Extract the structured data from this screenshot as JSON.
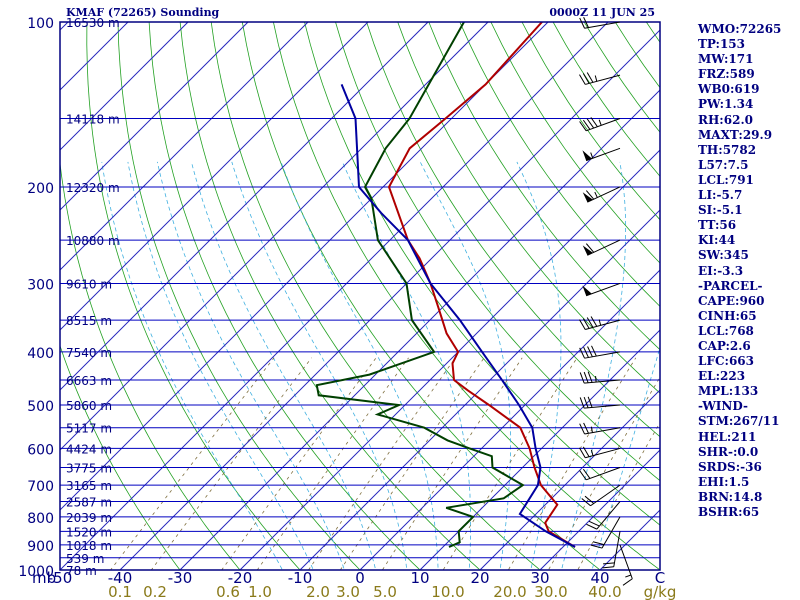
{
  "header": {
    "station": "KMAF (72265) Sounding",
    "time": "0000Z 11 JUN 25"
  },
  "indices": [
    "WMO:72265",
    "TP:153",
    "MW:171",
    "FRZ:589",
    "WB0:619",
    "PW:1.34",
    "RH:62.0",
    "MAXT:29.9",
    "TH:5782",
    "L57:7.5",
    "LCL:791",
    "LI:-5.7",
    "SI:-5.1",
    "TT:56",
    "KI:44",
    "SW:345",
    "EI:-3.3",
    "-PARCEL-",
    "CAPE:960",
    "CINH:65",
    "LCL:768",
    "CAP:2.6",
    "LFC:663",
    "EL:223",
    "MPL:133",
    "-WIND-",
    "STM:267/11",
    "HEL:211",
    "SHR-:0.0",
    "SRDS:-36",
    "EHI:1.5",
    "BRN:14.8",
    "BSHR:65"
  ],
  "axis": {
    "pressure_label": "mb",
    "mixing_label": "g/kg",
    "pressure_ticks": [
      "100",
      "200",
      "300",
      "400",
      "500",
      "600",
      "700",
      "800",
      "900",
      "1000"
    ],
    "temp_ticks": [
      "-50",
      "-40",
      "-30",
      "-20",
      "-10",
      "0",
      "10",
      "20",
      "30",
      "40",
      "C"
    ],
    "mixing_ticks": [
      "0.1",
      "0.2",
      "0.6",
      "1.0",
      "2.0",
      "3.0",
      "5.0",
      "10.0",
      "20.0",
      "30.0",
      "40.0"
    ]
  },
  "chart_data": {
    "type": "line",
    "title": "KMAF (72265) Sounding",
    "subtitle": "0000Z 11 JUN 25",
    "xlabel": "C",
    "ylabel": "mb",
    "x_scale": "skew-T",
    "y_scale": "log pressure (reversed)",
    "xlim": [
      -50,
      50
    ],
    "ylim": [
      1000,
      100
    ],
    "height_labels": [
      {
        "p": 100,
        "label": "16530 m"
      },
      {
        "p": 150,
        "label": "14118 m"
      },
      {
        "p": 200,
        "label": "12320 m"
      },
      {
        "p": 250,
        "label": "10880 m"
      },
      {
        "p": 300,
        "label": "9610 m"
      },
      {
        "p": 350,
        "label": "8515 m"
      },
      {
        "p": 400,
        "label": "7540 m"
      },
      {
        "p": 450,
        "label": "6663 m"
      },
      {
        "p": 500,
        "label": "5860 m"
      },
      {
        "p": 550,
        "label": "5117 m"
      },
      {
        "p": 600,
        "label": "4424 m"
      },
      {
        "p": 650,
        "label": "3775 m"
      },
      {
        "p": 700,
        "label": "3165 m"
      },
      {
        "p": 750,
        "label": "2587 m"
      },
      {
        "p": 800,
        "label": "2039 m"
      },
      {
        "p": 850,
        "label": "1520 m"
      },
      {
        "p": 900,
        "label": "1018 m"
      },
      {
        "p": 950,
        "label": "539 m"
      },
      {
        "p": 1000,
        "label": "78 m"
      }
    ],
    "series": [
      {
        "key": "temperature",
        "color": "#b00000",
        "points": [
          [
            908,
            32
          ],
          [
            850,
            25
          ],
          [
            820,
            23
          ],
          [
            760,
            22
          ],
          [
            700,
            16
          ],
          [
            650,
            12
          ],
          [
            600,
            8
          ],
          [
            550,
            3
          ],
          [
            500,
            -6
          ],
          [
            470,
            -12
          ],
          [
            450,
            -16
          ],
          [
            420,
            -19
          ],
          [
            400,
            -20
          ],
          [
            370,
            -25
          ],
          [
            330,
            -31
          ],
          [
            300,
            -36
          ],
          [
            270,
            -42
          ],
          [
            250,
            -47
          ],
          [
            200,
            -59
          ],
          [
            170,
            -62
          ],
          [
            150,
            -61
          ],
          [
            130,
            -60
          ],
          [
            100,
            -61
          ]
        ]
      },
      {
        "key": "dewpoint",
        "color": "#004000",
        "points": [
          [
            908,
            11
          ],
          [
            890,
            12
          ],
          [
            850,
            10
          ],
          [
            800,
            10
          ],
          [
            770,
            4
          ],
          [
            740,
            12
          ],
          [
            700,
            13
          ],
          [
            650,
            5
          ],
          [
            620,
            3
          ],
          [
            600,
            -2
          ],
          [
            580,
            -7
          ],
          [
            550,
            -13
          ],
          [
            520,
            -23
          ],
          [
            500,
            -21
          ],
          [
            480,
            -36
          ],
          [
            460,
            -38
          ],
          [
            440,
            -31
          ],
          [
            400,
            -24
          ],
          [
            350,
            -33
          ],
          [
            300,
            -40
          ],
          [
            250,
            -52
          ],
          [
            210,
            -60
          ],
          [
            200,
            -63
          ],
          [
            170,
            -66
          ],
          [
            150,
            -67
          ],
          [
            100,
            -74
          ]
        ]
      },
      {
        "key": "parcel",
        "color": "#0000a0",
        "points": [
          [
            908,
            32
          ],
          [
            850,
            24.5
          ],
          [
            790,
            17.3
          ],
          [
            700,
            15.5
          ],
          [
            650,
            13
          ],
          [
            600,
            9
          ],
          [
            550,
            5
          ],
          [
            500,
            -1
          ],
          [
            450,
            -8
          ],
          [
            400,
            -16
          ],
          [
            350,
            -25
          ],
          [
            300,
            -36
          ],
          [
            250,
            -47
          ],
          [
            223,
            -56
          ],
          [
            200,
            -64
          ],
          [
            150,
            -76
          ],
          [
            130,
            -84
          ]
        ]
      }
    ],
    "wind_barbs": [
      {
        "p": 900,
        "dir": 160,
        "speed": 15
      },
      {
        "p": 850,
        "dir": 190,
        "speed": 20
      },
      {
        "p": 800,
        "dir": 210,
        "speed": 20
      },
      {
        "p": 750,
        "dir": 220,
        "speed": 20
      },
      {
        "p": 700,
        "dir": 235,
        "speed": 20
      },
      {
        "p": 650,
        "dir": 250,
        "speed": 20
      },
      {
        "p": 600,
        "dir": 255,
        "speed": 25
      },
      {
        "p": 550,
        "dir": 260,
        "speed": 25
      },
      {
        "p": 500,
        "dir": 265,
        "speed": 30
      },
      {
        "p": 450,
        "dir": 265,
        "speed": 35
      },
      {
        "p": 400,
        "dir": 260,
        "speed": 40
      },
      {
        "p": 350,
        "dir": 255,
        "speed": 45
      },
      {
        "p": 300,
        "dir": 250,
        "speed": 50
      },
      {
        "p": 250,
        "dir": 245,
        "speed": 60
      },
      {
        "p": 200,
        "dir": 245,
        "speed": 65
      },
      {
        "p": 170,
        "dir": 250,
        "speed": 55
      },
      {
        "p": 150,
        "dir": 250,
        "speed": 45
      },
      {
        "p": 125,
        "dir": 255,
        "speed": 35
      },
      {
        "p": 100,
        "dir": 260,
        "speed": 20
      }
    ]
  },
  "colors": {
    "frame": "#000080",
    "isobar": "#0000c0",
    "isotherm": "#3030c0",
    "dry_adiabat": "#22a022",
    "moist_adiabat": "#40b0e0",
    "mixing_ratio": "#807040",
    "temperature": "#b00000",
    "dewpoint": "#004000",
    "parcel": "#0000a0",
    "barb": "#000000"
  }
}
